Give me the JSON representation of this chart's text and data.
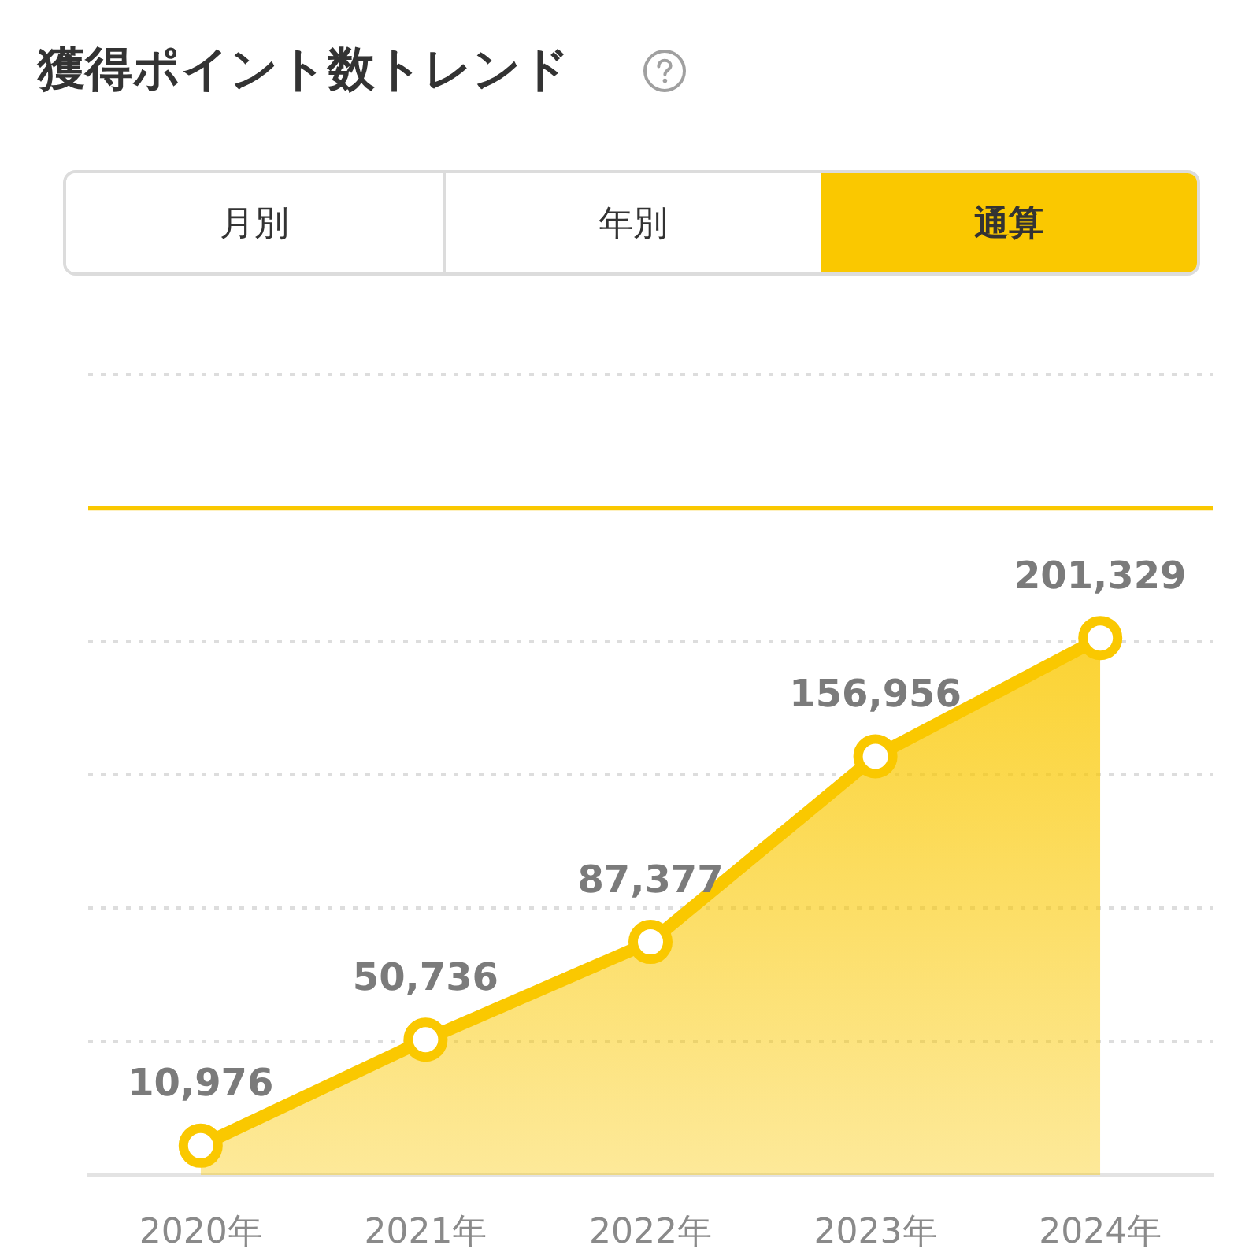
{
  "chart_data": {
    "type": "area",
    "title": "獲得ポイント数トレンド",
    "annotations": [
      "月別",
      "年別",
      "通算"
    ],
    "categories": [
      "2020年",
      "2021年",
      "2022年",
      "2023年",
      "2024年"
    ],
    "values": [
      10976,
      50736,
      87377,
      156956,
      201329
    ],
    "value_labels": [
      "10,976",
      "50,736",
      "87,377",
      "156,956",
      "201,329"
    ],
    "color": "#fac800",
    "marker": "circle",
    "ylim": [
      0,
      300000
    ],
    "yticks": [
      {
        "value": 0,
        "label": null
      },
      {
        "value": 50000,
        "label": null
      },
      {
        "value": 100000,
        "label": null
      },
      {
        "value": 150000,
        "label": null
      },
      {
        "value": 200000,
        "label": null
      },
      {
        "value": 250000,
        "label": null
      },
      {
        "value": 300000,
        "label": null
      }
    ],
    "tick_labels": "x",
    "grid": "y",
    "ref_lines": [
      {
        "axis": "y",
        "value": 250000,
        "color": "#fac800"
      }
    ]
  }
}
